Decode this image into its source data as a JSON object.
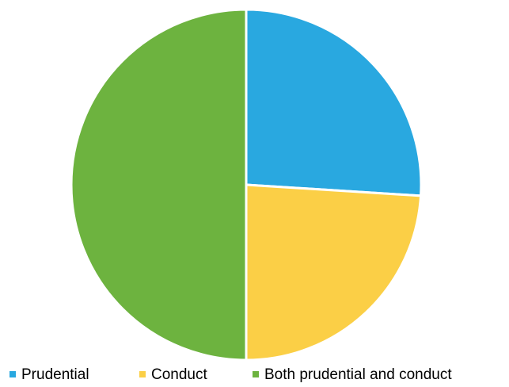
{
  "chart_data": {
    "type": "pie",
    "title": "",
    "categories": [
      "Prudential",
      "Conduct",
      "Both prudential and conduct"
    ],
    "values": [
      26,
      24,
      50
    ],
    "colors": [
      "#29a8e0",
      "#fbcf46",
      "#6db33f"
    ],
    "start_angle_deg": 0,
    "direction": "clockwise",
    "legend_position": "bottom"
  }
}
